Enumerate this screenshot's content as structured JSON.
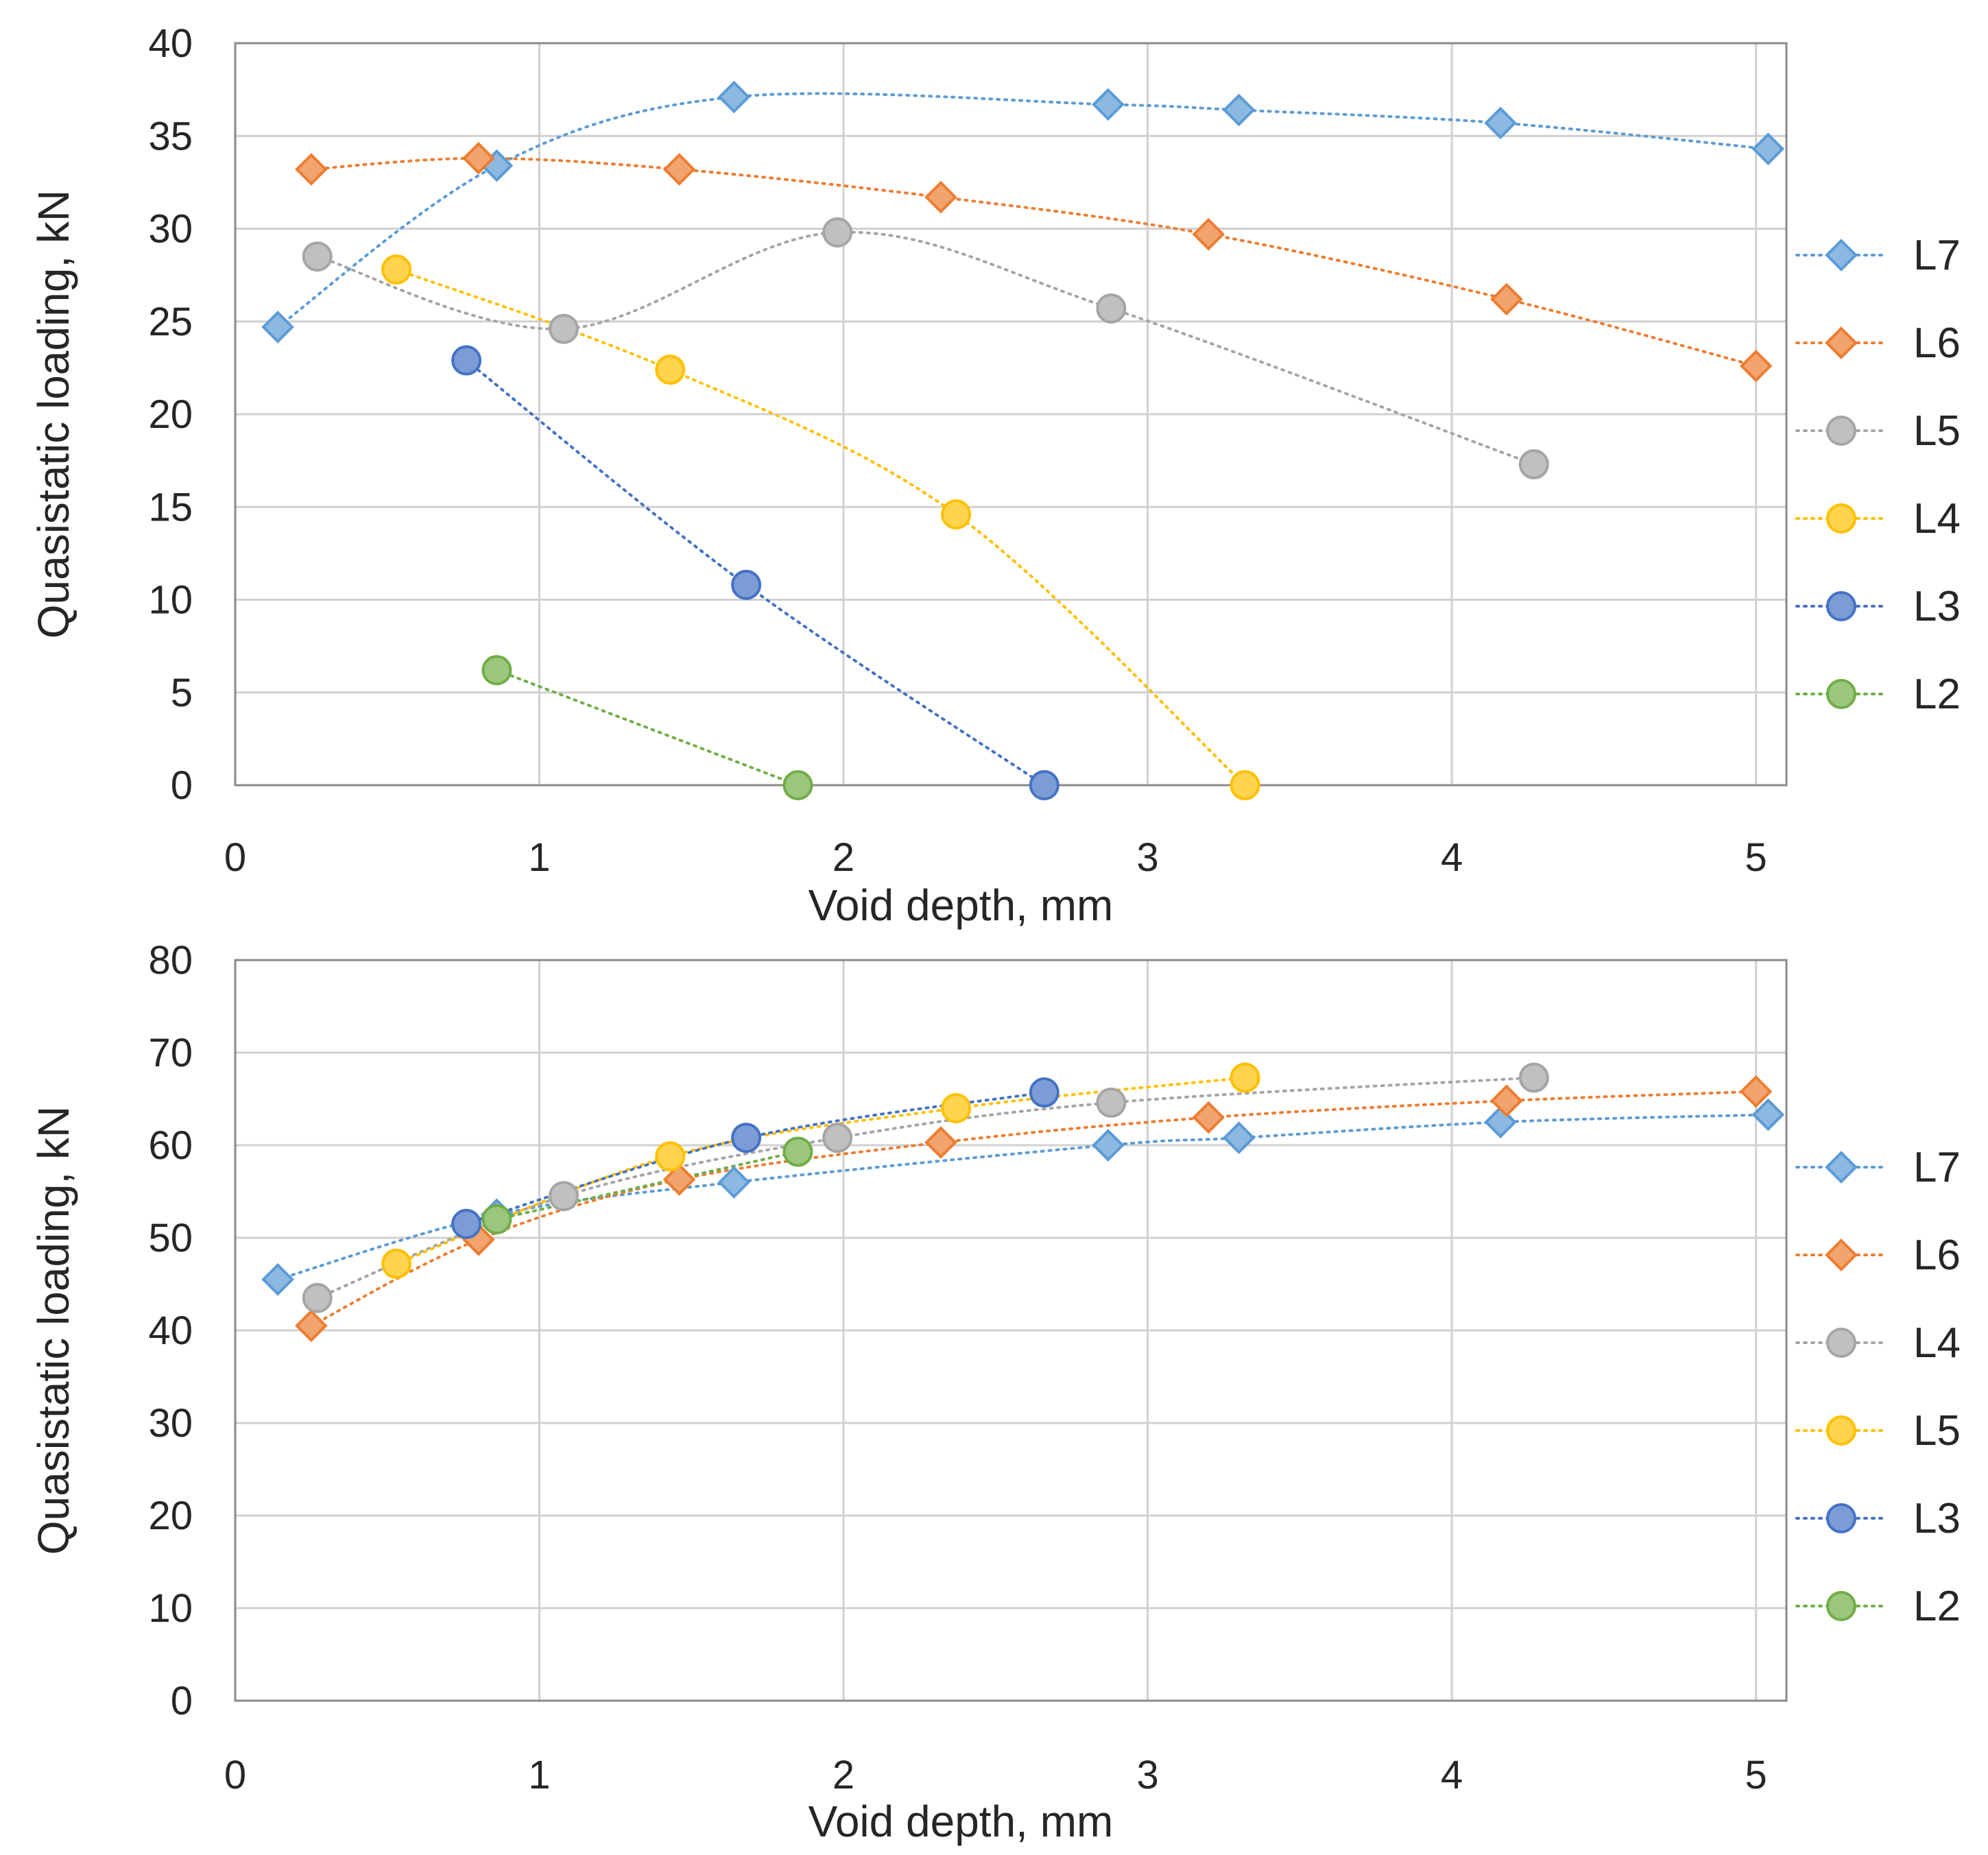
{
  "chart_data": [
    {
      "type": "scatter",
      "title": "",
      "xlabel": "Void depth, mm",
      "ylabel": "Quasistatic loading, kN",
      "xlim": [
        0,
        5.1
      ],
      "ylim": [
        0,
        40
      ],
      "xticks": [
        0,
        1,
        2,
        3,
        4,
        5
      ],
      "yticks": [
        0,
        5,
        10,
        15,
        20,
        25,
        30,
        35,
        40
      ],
      "grid": true,
      "legend_position": "right",
      "series": [
        {
          "name": "L7",
          "color": "#5B9BD5",
          "marker": "diamond",
          "x": [
            0.14,
            0.86,
            1.64,
            2.87,
            3.3,
            4.16,
            5.04
          ],
          "y": [
            24.7,
            33.4,
            37.1,
            36.7,
            36.4,
            35.7,
            34.3
          ]
        },
        {
          "name": "L6",
          "color": "#ED7D31",
          "marker": "diamond",
          "x": [
            0.25,
            0.8,
            1.46,
            2.32,
            3.2,
            4.18,
            5.0
          ],
          "y": [
            33.2,
            33.8,
            33.2,
            31.7,
            29.7,
            26.2,
            22.6
          ]
        },
        {
          "name": "L5",
          "color": "#A5A5A5",
          "marker": "circle",
          "x": [
            0.27,
            1.08,
            1.98,
            2.88,
            4.27
          ],
          "y": [
            28.5,
            24.6,
            29.8,
            25.7,
            17.3
          ]
        },
        {
          "name": "L4",
          "color": "#FFC000",
          "marker": "circle",
          "x": [
            0.53,
            1.43,
            2.37,
            3.32
          ],
          "y": [
            27.8,
            22.4,
            14.6,
            0
          ]
        },
        {
          "name": "L3",
          "color": "#4472C4",
          "marker": "circle",
          "x": [
            0.76,
            1.68,
            2.66
          ],
          "y": [
            22.9,
            10.8,
            0
          ]
        },
        {
          "name": "L2",
          "color": "#70AD47",
          "marker": "circle",
          "x": [
            0.86,
            1.85
          ],
          "y": [
            6.2,
            0
          ]
        }
      ]
    },
    {
      "type": "scatter",
      "title": "",
      "xlabel": "Void depth, mm",
      "ylabel": "Quasistatic loading, kN",
      "xlim": [
        0,
        5.1
      ],
      "ylim": [
        0,
        80
      ],
      "xticks": [
        0,
        1,
        2,
        3,
        4,
        5
      ],
      "yticks": [
        0,
        10,
        20,
        30,
        40,
        50,
        60,
        70,
        80
      ],
      "grid": true,
      "legend_position": "right",
      "series": [
        {
          "name": "L7",
          "color": "#5B9BD5",
          "marker": "diamond",
          "x": [
            0.14,
            0.86,
            1.64,
            2.87,
            3.3,
            4.16,
            5.04
          ],
          "y": [
            45.5,
            52.5,
            56.0,
            60.0,
            60.8,
            62.5,
            63.3
          ]
        },
        {
          "name": "L6",
          "color": "#ED7D31",
          "marker": "diamond",
          "x": [
            0.25,
            0.8,
            1.46,
            2.32,
            3.2,
            4.18,
            5.0
          ],
          "y": [
            40.5,
            49.8,
            56.3,
            60.3,
            63.0,
            64.8,
            65.8
          ]
        },
        {
          "name": "L4",
          "color": "#A5A5A5",
          "marker": "circle",
          "x": [
            0.27,
            1.08,
            1.98,
            2.88,
            4.27
          ],
          "y": [
            43.5,
            54.5,
            60.8,
            64.6,
            67.3
          ]
        },
        {
          "name": "L5",
          "color": "#FFC000",
          "marker": "circle",
          "x": [
            0.53,
            1.43,
            2.37,
            3.32
          ],
          "y": [
            47.2,
            58.8,
            64.0,
            67.3
          ]
        },
        {
          "name": "L3",
          "color": "#4472C4",
          "marker": "circle",
          "x": [
            0.76,
            1.68,
            2.66
          ],
          "y": [
            51.5,
            60.8,
            65.7
          ]
        },
        {
          "name": "L2",
          "color": "#70AD47",
          "marker": "circle",
          "x": [
            0.86,
            1.85
          ],
          "y": [
            52.0,
            59.3
          ]
        }
      ]
    }
  ]
}
